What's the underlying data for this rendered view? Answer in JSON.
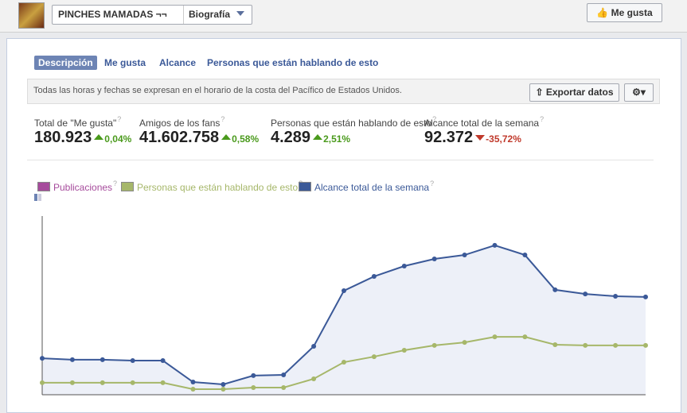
{
  "header": {
    "page_name": "PINCHES MAMADAS ¬¬",
    "view": "Biografía",
    "like_button": "Me gusta"
  },
  "tabs": [
    "Descripción",
    "Me gusta",
    "Alcance",
    "Personas que están hablando de esto"
  ],
  "notice": "Todas las horas y fechas se expresan en el horario de la costa del Pacífico de Estados Unidos.",
  "export_button": "Exportar datos",
  "help_mark": "?",
  "stats": [
    {
      "label": "Total de \"Me gusta\"",
      "value": "180.923",
      "change": "0,04%",
      "trend": "up"
    },
    {
      "label": "Amigos de los fans",
      "value": "41.602.758",
      "change": "0,58%",
      "trend": "up"
    },
    {
      "label": "Personas que están hablando de esto",
      "value": "4.289",
      "change": "2,51%",
      "trend": "up"
    },
    {
      "label": "Alcance total de la semana",
      "value": "92.372",
      "change": "-35,72%",
      "trend": "down"
    }
  ],
  "chart_data": {
    "type": "line",
    "categories": [
      null,
      null,
      null,
      null,
      null,
      null,
      null,
      null,
      null,
      null,
      null,
      null,
      null,
      null,
      null,
      null,
      null,
      null,
      null,
      null,
      null
    ],
    "ylim": [
      0,
      100
    ],
    "series": [
      {
        "name": "Publicaciones",
        "color": "#a64b9c",
        "values": [
          null,
          null,
          null,
          null,
          null,
          null,
          null,
          null,
          null,
          null,
          null,
          null,
          null,
          null,
          null,
          null,
          null,
          null,
          null,
          null,
          null
        ]
      },
      {
        "name": "Personas que están hablando de esto",
        "color": "#a6b76a",
        "fill": "#f5f7ec",
        "values": [
          6.7,
          6.7,
          6.7,
          6.7,
          6.7,
          3.1,
          3.1,
          4,
          4,
          8.9,
          18.2,
          21.3,
          24.9,
          27.6,
          29.3,
          32.4,
          32.4,
          28,
          27.6,
          27.6,
          27.6
        ]
      },
      {
        "name": "Alcance total de la semana",
        "color": "#3b5998",
        "fill": "#edf0f8",
        "values": [
          20.4,
          19.6,
          19.6,
          19.1,
          19.1,
          7.1,
          5.8,
          10.7,
          11.1,
          27.1,
          58.2,
          66.2,
          72,
          76,
          78.2,
          83.6,
          78.2,
          58.7,
          56.4,
          55.1,
          54.7
        ]
      }
    ]
  }
}
